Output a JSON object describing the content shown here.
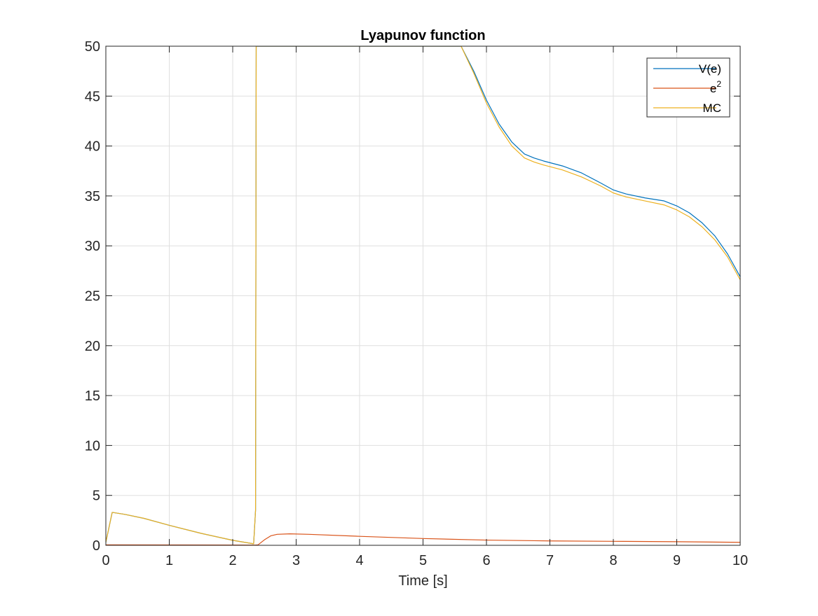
{
  "chart_data": {
    "type": "line",
    "title": "Lyapunov function",
    "xlabel": "Time [s]",
    "ylabel": "",
    "xlim": [
      0,
      10
    ],
    "ylim": [
      0,
      50
    ],
    "xticks": [
      0,
      1,
      2,
      3,
      4,
      5,
      6,
      7,
      8,
      9,
      10
    ],
    "yticks": [
      0,
      5,
      10,
      15,
      20,
      25,
      30,
      35,
      40,
      45,
      50
    ],
    "grid": true,
    "legend_position": "top-right",
    "series": [
      {
        "name": "V(e)",
        "color": "#0072BD",
        "points": [
          [
            0,
            0.3
          ],
          [
            0.1,
            3.3
          ],
          [
            0.3,
            3.1
          ],
          [
            0.6,
            2.7
          ],
          [
            1.0,
            2.0
          ],
          [
            1.5,
            1.2
          ],
          [
            2.0,
            0.5
          ],
          [
            2.33,
            0.15
          ],
          [
            2.36,
            3.5
          ],
          [
            2.37,
            50
          ],
          [
            5.6,
            50
          ],
          [
            5.8,
            47.5
          ],
          [
            6.0,
            44.6
          ],
          [
            6.2,
            42.2
          ],
          [
            6.4,
            40.4
          ],
          [
            6.6,
            39.2
          ],
          [
            6.75,
            38.8
          ],
          [
            6.9,
            38.5
          ],
          [
            7.2,
            38.0
          ],
          [
            7.5,
            37.3
          ],
          [
            7.8,
            36.3
          ],
          [
            8.0,
            35.6
          ],
          [
            8.2,
            35.2
          ],
          [
            8.5,
            34.8
          ],
          [
            8.8,
            34.5
          ],
          [
            9.0,
            34.0
          ],
          [
            9.2,
            33.3
          ],
          [
            9.4,
            32.3
          ],
          [
            9.6,
            31.0
          ],
          [
            9.8,
            29.2
          ],
          [
            10.0,
            26.9
          ]
        ]
      },
      {
        "name": "e",
        "name_sup": "2",
        "color": "#D95319",
        "points": [
          [
            0,
            0.05
          ],
          [
            1.0,
            0.04
          ],
          [
            2.0,
            0.03
          ],
          [
            2.35,
            0.02
          ],
          [
            2.4,
            0.05
          ],
          [
            2.5,
            0.55
          ],
          [
            2.6,
            0.95
          ],
          [
            2.7,
            1.1
          ],
          [
            2.9,
            1.15
          ],
          [
            3.2,
            1.1
          ],
          [
            4.0,
            0.9
          ],
          [
            5.0,
            0.68
          ],
          [
            6.0,
            0.52
          ],
          [
            7.0,
            0.44
          ],
          [
            8.0,
            0.4
          ],
          [
            9.0,
            0.36
          ],
          [
            10.0,
            0.3
          ]
        ]
      },
      {
        "name": "MC",
        "color": "#EDB120",
        "points": [
          [
            0,
            0.3
          ],
          [
            0.1,
            3.3
          ],
          [
            0.3,
            3.1
          ],
          [
            0.6,
            2.7
          ],
          [
            1.0,
            2.0
          ],
          [
            1.5,
            1.2
          ],
          [
            2.0,
            0.5
          ],
          [
            2.33,
            0.15
          ],
          [
            2.36,
            3.5
          ],
          [
            2.37,
            50
          ],
          [
            5.6,
            50
          ],
          [
            5.8,
            47.3
          ],
          [
            6.0,
            44.3
          ],
          [
            6.2,
            41.9
          ],
          [
            6.4,
            40.0
          ],
          [
            6.6,
            38.8
          ],
          [
            6.75,
            38.4
          ],
          [
            6.9,
            38.1
          ],
          [
            7.2,
            37.6
          ],
          [
            7.5,
            36.9
          ],
          [
            7.8,
            36.0
          ],
          [
            8.0,
            35.3
          ],
          [
            8.2,
            34.9
          ],
          [
            8.5,
            34.5
          ],
          [
            8.8,
            34.1
          ],
          [
            9.0,
            33.6
          ],
          [
            9.2,
            32.9
          ],
          [
            9.4,
            31.9
          ],
          [
            9.6,
            30.6
          ],
          [
            9.8,
            28.9
          ],
          [
            10.0,
            26.6
          ]
        ]
      }
    ]
  }
}
